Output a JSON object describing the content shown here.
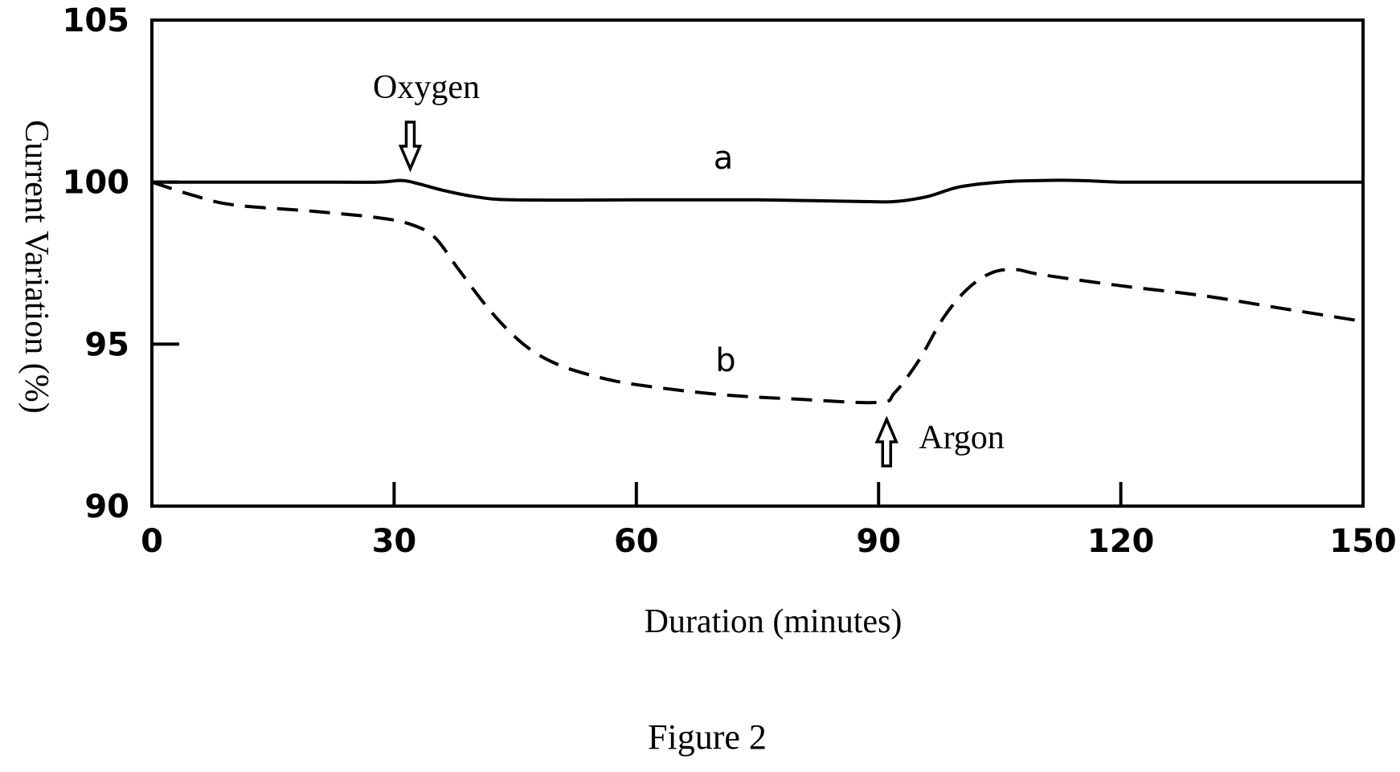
{
  "chart_data": {
    "type": "line",
    "title": "",
    "caption": "Figure 2",
    "xlabel": "Duration (minutes)",
    "ylabel": "Current Variation (%)",
    "xlim": [
      0,
      150
    ],
    "ylim": [
      90,
      105
    ],
    "xticks": [
      0,
      30,
      60,
      90,
      120,
      150
    ],
    "yticks": [
      90,
      95,
      100,
      105
    ],
    "grid": false,
    "series": [
      {
        "name": "a",
        "style": "solid",
        "points": [
          [
            0,
            100
          ],
          [
            10,
            100
          ],
          [
            20,
            100
          ],
          [
            28,
            100
          ],
          [
            31,
            100.05
          ],
          [
            33,
            99.95
          ],
          [
            36,
            99.75
          ],
          [
            40,
            99.55
          ],
          [
            45,
            99.45
          ],
          [
            60,
            99.45
          ],
          [
            75,
            99.45
          ],
          [
            88,
            99.4
          ],
          [
            92,
            99.4
          ],
          [
            96,
            99.55
          ],
          [
            100,
            99.85
          ],
          [
            105,
            100
          ],
          [
            110,
            100.05
          ],
          [
            115,
            100.05
          ],
          [
            120,
            100
          ],
          [
            130,
            100
          ],
          [
            140,
            100
          ],
          [
            150,
            100
          ]
        ]
      },
      {
        "name": "b",
        "style": "dashed",
        "points": [
          [
            0,
            100
          ],
          [
            5,
            99.6
          ],
          [
            10,
            99.3
          ],
          [
            20,
            99.1
          ],
          [
            28,
            98.9
          ],
          [
            32,
            98.7
          ],
          [
            35,
            98.3
          ],
          [
            38,
            97.3
          ],
          [
            42,
            96.0
          ],
          [
            46,
            95.0
          ],
          [
            50,
            94.4
          ],
          [
            55,
            94.0
          ],
          [
            60,
            93.75
          ],
          [
            70,
            93.45
          ],
          [
            80,
            93.3
          ],
          [
            90,
            93.2
          ],
          [
            92,
            93.5
          ],
          [
            95,
            94.5
          ],
          [
            98,
            95.8
          ],
          [
            101,
            96.7
          ],
          [
            104,
            97.2
          ],
          [
            107,
            97.3
          ],
          [
            110,
            97.15
          ],
          [
            120,
            96.8
          ],
          [
            130,
            96.5
          ],
          [
            140,
            96.1
          ],
          [
            150,
            95.7
          ]
        ]
      }
    ],
    "annotations": [
      {
        "text": "Oxygen",
        "x": 32,
        "arrow": "down"
      },
      {
        "text": "Argon",
        "x": 91,
        "arrow": "up"
      },
      {
        "text": "a",
        "series": "a"
      },
      {
        "text": "b",
        "series": "b"
      }
    ]
  }
}
